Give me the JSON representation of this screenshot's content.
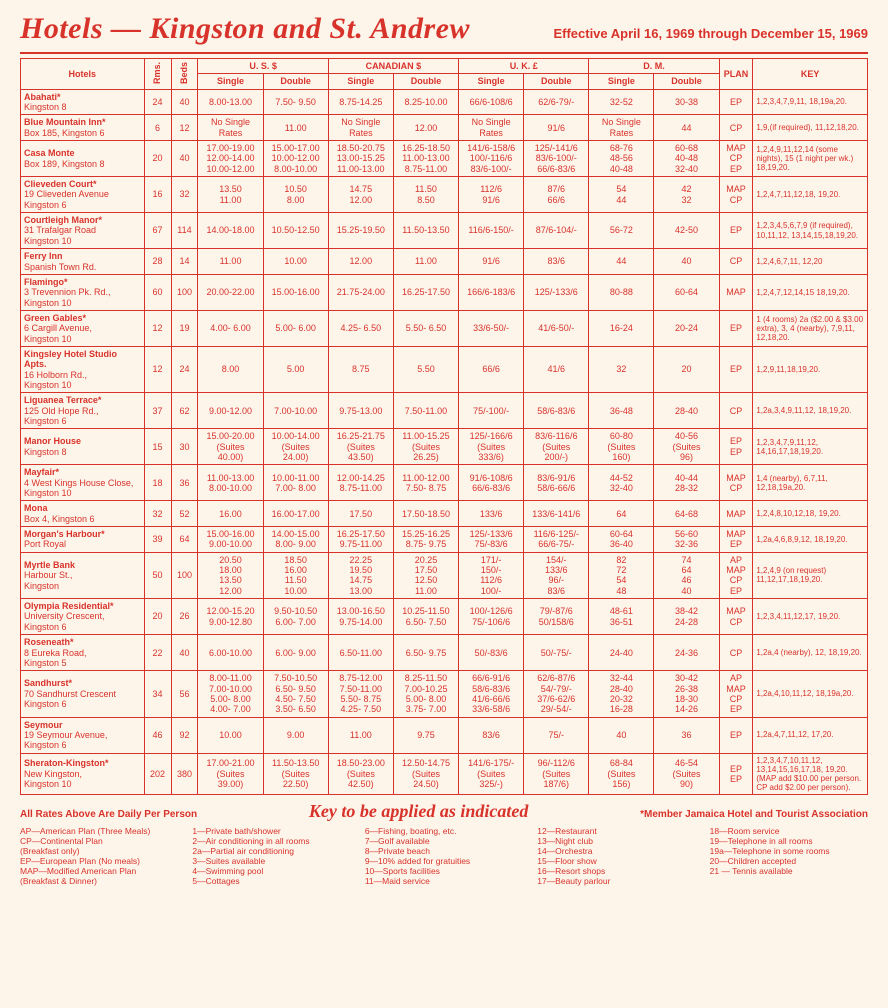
{
  "header": {
    "title": "Hotels — Kingston and St. Andrew",
    "effective": "Effective April 16, 1969 through December 15, 1969"
  },
  "columns": {
    "hotels": "Hotels",
    "rms": "Rms.",
    "beds": "Beds",
    "us": "U. S. $",
    "can": "CANADIAN $",
    "uk": "U. K. £",
    "dm": "D. M.",
    "single": "Single",
    "double": "Double",
    "plan": "PLAN",
    "key": "KEY"
  },
  "hotels": [
    {
      "name": "Abahati*",
      "addr": "Kingston 8",
      "rms": "24",
      "beds": "40",
      "us_s": "8.00-13.00",
      "us_d": "7.50- 9.50",
      "ca_s": "8.75-14.25",
      "ca_d": "8.25-10.00",
      "uk_s": "66/6-108/6",
      "uk_d": "62/6-79/-",
      "dm_s": "32-52",
      "dm_d": "30-38",
      "plan": "EP",
      "key": "1,2,3,4,7,9,11, 18,19a,20."
    },
    {
      "name": "Blue Mountain Inn*",
      "addr": "Box 185, Kingston 6",
      "rms": "6",
      "beds": "12",
      "us_s": "No Single\nRates",
      "us_d": "11.00",
      "ca_s": "No Single\nRates",
      "ca_d": "12.00",
      "uk_s": "No Single\nRates",
      "uk_d": "91/6",
      "dm_s": "No Single\nRates",
      "dm_d": "44",
      "plan": "CP",
      "key": "1,9,(if required), 11,12,18,20."
    },
    {
      "name": "Casa Monte",
      "addr": "Box 189, Kingston 8",
      "rms": "20",
      "beds": "40",
      "us_s": "17.00-19.00\n12.00-14.00\n10.00-12.00",
      "us_d": "15.00-17.00\n10.00-12.00\n8.00-10.00",
      "ca_s": "18.50-20.75\n13.00-15.25\n11.00-13.00",
      "ca_d": "16.25-18.50\n11.00-13.00\n8.75-11.00",
      "uk_s": "141/6-158/6\n100/-116/6\n83/6-100/-",
      "uk_d": "125/-141/6\n83/6-100/-\n66/6-83/6",
      "dm_s": "68-76\n48-56\n40-48",
      "dm_d": "60-68\n40-48\n32-40",
      "plan": "MAP\nCP\nEP",
      "key": "1,2,4,9,11,12,14 (some nights), 15 (1 night per wk.) 18,19,20."
    },
    {
      "name": "Clieveden Court*",
      "addr": "19 Clieveden Avenue\nKingston 6",
      "rms": "16",
      "beds": "32",
      "us_s": "13.50\n11.00",
      "us_d": "10.50\n8.00",
      "ca_s": "14.75\n12.00",
      "ca_d": "11.50\n8.50",
      "uk_s": "112/6\n91/6",
      "uk_d": "87/6\n66/6",
      "dm_s": "54\n44",
      "dm_d": "42\n32",
      "plan": "MAP\nCP",
      "key": "1,2,4,7,11,12,18, 19,20."
    },
    {
      "name": "Courtleigh Manor*",
      "addr": "31 Trafalgar Road\nKingston 10",
      "rms": "67",
      "beds": "114",
      "us_s": "14.00-18.00",
      "us_d": "10.50-12.50",
      "ca_s": "15.25-19.50",
      "ca_d": "11.50-13.50",
      "uk_s": "116/6-150/-",
      "uk_d": "87/6-104/-",
      "dm_s": "56-72",
      "dm_d": "42-50",
      "plan": "EP",
      "key": "1,2,3,4,5,6,7,9 (if required), 10,11,12, 13,14,15,18,19,20."
    },
    {
      "name": "Ferry Inn",
      "addr": "Spanish Town Rd.",
      "rms": "28",
      "beds": "14",
      "us_s": "11.00",
      "us_d": "10.00",
      "ca_s": "12.00",
      "ca_d": "11.00",
      "uk_s": "91/6",
      "uk_d": "83/6",
      "dm_s": "44",
      "dm_d": "40",
      "plan": "CP",
      "key": "1,2,4,6,7,11, 12,20"
    },
    {
      "name": "Flamingo*",
      "addr": "3 Trevennion Pk. Rd.,\nKingston 10",
      "rms": "60",
      "beds": "100",
      "us_s": "20.00-22.00",
      "us_d": "15.00-16.00",
      "ca_s": "21.75-24.00",
      "ca_d": "16.25-17.50",
      "uk_s": "166/6-183/6",
      "uk_d": "125/-133/6",
      "dm_s": "80-88",
      "dm_d": "60-64",
      "plan": "MAP",
      "key": "1,2,4,7,12,14,15 18,19,20."
    },
    {
      "name": "Green Gables*",
      "addr": "6 Cargill Avenue,\nKingston 10",
      "rms": "12",
      "beds": "19",
      "us_s": "4.00- 6.00",
      "us_d": "5.00- 6.00",
      "ca_s": "4.25- 6.50",
      "ca_d": "5.50- 6.50",
      "uk_s": "33/6-50/-",
      "uk_d": "41/6-50/-",
      "dm_s": "16-24",
      "dm_d": "20-24",
      "plan": "EP",
      "key": "1 (4 rooms) 2a ($2.00 & $3.00 extra), 3, 4 (nearby), 7,9,11, 12,18,20."
    },
    {
      "name": "Kingsley Hotel Studio Apts.",
      "addr": "16 Holborn Rd.,\nKingston 10",
      "rms": "12",
      "beds": "24",
      "us_s": "8.00",
      "us_d": "5.00",
      "ca_s": "8.75",
      "ca_d": "5.50",
      "uk_s": "66/6",
      "uk_d": "41/6",
      "dm_s": "32",
      "dm_d": "20",
      "plan": "EP",
      "key": "1,2,9,11,18,19,20."
    },
    {
      "name": "Liguanea Terrace*",
      "addr": "125 Old Hope Rd.,\nKingston 6",
      "rms": "37",
      "beds": "62",
      "us_s": "9.00-12.00",
      "us_d": "7.00-10.00",
      "ca_s": "9.75-13.00",
      "ca_d": "7.50-11.00",
      "uk_s": "75/-100/-",
      "uk_d": "58/6-83/6",
      "dm_s": "36-48",
      "dm_d": "28-40",
      "plan": "CP",
      "key": "1,2a,3,4,9,11,12, 18,19,20."
    },
    {
      "name": "Manor House",
      "addr": "Kingston 8",
      "rms": "15",
      "beds": "30",
      "us_s": "15.00-20.00\n(Suites\n40.00)",
      "us_d": "10.00-14.00\n(Suites\n24.00)",
      "ca_s": "16.25-21.75\n(Suites\n43.50)",
      "ca_d": "11.00-15.25\n(Suites\n26.25)",
      "uk_s": "125/-166/6\n(Suites\n333/6)",
      "uk_d": "83/6-116/6\n(Suites\n200/-)",
      "dm_s": "60-80\n(Suites\n160)",
      "dm_d": "40-56\n(Suites\n96)",
      "plan": "EP\nEP",
      "key": "1,2,3,4,7,9,11,12, 14,16,17,18,19,20."
    },
    {
      "name": "Mayfair*",
      "addr": "4 West Kings House Close,\nKingston 10",
      "rms": "18",
      "beds": "36",
      "us_s": "11.00-13.00\n8.00-10.00",
      "us_d": "10.00-11.00\n7.00- 8.00",
      "ca_s": "12.00-14.25\n8.75-11.00",
      "ca_d": "11.00-12.00\n7.50- 8.75",
      "uk_s": "91/6-108/6\n66/6-83/6",
      "uk_d": "83/6-91/6\n58/6-66/6",
      "dm_s": "44-52\n32-40",
      "dm_d": "40-44\n28-32",
      "plan": "MAP\nCP",
      "key": "1,4 (nearby), 6,7,11, 12,18,19a,20."
    },
    {
      "name": "Mona",
      "addr": "Box 4, Kingston 6",
      "rms": "32",
      "beds": "52",
      "us_s": "16.00",
      "us_d": "16.00-17.00",
      "ca_s": "17.50",
      "ca_d": "17.50-18.50",
      "uk_s": "133/6",
      "uk_d": "133/6-141/6",
      "dm_s": "64",
      "dm_d": "64-68",
      "plan": "MAP",
      "key": "1,2,4,8,10,12,18, 19,20."
    },
    {
      "name": "Morgan's Harbour*",
      "addr": "Port Royal",
      "rms": "39",
      "beds": "64",
      "us_s": "15.00-16.00\n9.00-10.00",
      "us_d": "14.00-15.00\n8.00- 9.00",
      "ca_s": "16.25-17.50\n9.75-11.00",
      "ca_d": "15.25-16.25\n8.75- 9.75",
      "uk_s": "125/-133/6\n75/-83/6",
      "uk_d": "116/6-125/-\n66/6-75/-",
      "dm_s": "60-64\n36-40",
      "dm_d": "56-60\n32-36",
      "plan": "MAP\nEP",
      "key": "1,2a,4,6,8,9,12, 18,19,20."
    },
    {
      "name": "Myrtle Bank",
      "addr": "Harbour St.,\nKingston",
      "rms": "50",
      "beds": "100",
      "us_s": "20.50\n18.00\n13.50\n12.00",
      "us_d": "18.50\n16.00\n11.50\n10.00",
      "ca_s": "22.25\n19.50\n14.75\n13.00",
      "ca_d": "20.25\n17.50\n12.50\n11.00",
      "uk_s": "171/-\n150/-\n112/6\n100/-",
      "uk_d": "154/-\n133/6\n96/-\n83/6",
      "dm_s": "82\n72\n54\n48",
      "dm_d": "74\n64\n46\n40",
      "plan": "AP\nMAP\nCP\nEP",
      "key": "1,2,4,9 (on request) 11,12,17,18,19,20."
    },
    {
      "name": "Olympia Residential*",
      "addr": "University Crescent,\nKingston 6",
      "rms": "20",
      "beds": "26",
      "us_s": "12.00-15.20\n9.00-12.80",
      "us_d": "9.50-10.50\n6.00- 7.00",
      "ca_s": "13.00-16.50\n9.75-14.00",
      "ca_d": "10.25-11.50\n6.50- 7.50",
      "uk_s": "100/-126/6\n75/-106/6",
      "uk_d": "79/-87/6\n50/158/6",
      "dm_s": "48-61\n36-51",
      "dm_d": "38-42\n24-28",
      "plan": "MAP\nCP",
      "key": "1,2,3,4,11,12,17, 19,20."
    },
    {
      "name": "Roseneath*",
      "addr": "8 Eureka Road,\nKingston 5",
      "rms": "22",
      "beds": "40",
      "us_s": "6.00-10.00",
      "us_d": "6.00- 9.00",
      "ca_s": "6.50-11.00",
      "ca_d": "6.50- 9.75",
      "uk_s": "50/-83/6",
      "uk_d": "50/-75/-",
      "dm_s": "24-40",
      "dm_d": "24-36",
      "plan": "CP",
      "key": "1,2a,4 (nearby), 12, 18,19,20."
    },
    {
      "name": "Sandhurst*",
      "addr": "70 Sandhurst Crescent\nKingston 6",
      "rms": "34",
      "beds": "56",
      "us_s": "8.00-11.00\n7.00-10.00\n5.00- 8.00\n4.00- 7.00",
      "us_d": "7.50-10.50\n6.50- 9.50\n4.50- 7.50\n3.50- 6.50",
      "ca_s": "8.75-12.00\n7.50-11.00\n5.50- 8.75\n4.25- 7.50",
      "ca_d": "8.25-11.50\n7.00-10.25\n5.00- 8.00\n3.75- 7.00",
      "uk_s": "66/6-91/6\n58/6-83/6\n41/6-66/6\n33/6-58/6",
      "uk_d": "62/6-87/6\n54/-79/-\n37/6-62/6\n29/-54/-",
      "dm_s": "32-44\n28-40\n20-32\n16-28",
      "dm_d": "30-42\n26-38\n18-30\n14-26",
      "plan": "AP\nMAP\nCP\nEP",
      "key": "1,2a,4,10,11,12, 18,19a,20."
    },
    {
      "name": "Seymour",
      "addr": "19 Seymour Avenue,\nKingston 6",
      "rms": "46",
      "beds": "92",
      "us_s": "10.00",
      "us_d": "9.00",
      "ca_s": "11.00",
      "ca_d": "9.75",
      "uk_s": "83/6",
      "uk_d": "75/-",
      "dm_s": "40",
      "dm_d": "36",
      "plan": "EP",
      "key": "1,2a,4,7,11,12, 17,20."
    },
    {
      "name": "Sheraton-Kingston*",
      "addr": "New Kingston,\nKingston 10",
      "rms": "202",
      "beds": "380",
      "us_s": "17.00-21.00\n(Suites\n39.00)",
      "us_d": "11.50-13.50\n(Suites\n22.50)",
      "ca_s": "18.50-23.00\n(Suites\n42.50)",
      "ca_d": "12.50-14.75\n(Suites\n24.50)",
      "uk_s": "141/6-175/-\n(Suites\n325/-)",
      "uk_d": "96/-112/6\n(Suites\n187/6)",
      "dm_s": "68-84\n(Suites\n156)",
      "dm_d": "46-54\n(Suites\n90)",
      "plan": "EP\nEP",
      "key": "1,2,3,4,7,10,11,12, 13,14,15,16,17,18, 19,20. (MAP add $10.00 per person. CP add $2.00 per person)."
    }
  ],
  "footer": {
    "rates_note": "All Rates Above Are Daily Per Person",
    "key_title": "Key to be applied as indicated",
    "member_note": "*Member Jamaica Hotel and Tourist Association",
    "plan_legend": [
      "AP—American Plan (Three Meals)",
      "CP—Continental Plan\n        (Breakfast only)",
      "EP—European Plan (No meals)",
      "MAP—Modified American Plan\n        (Breakfast & Dinner)"
    ],
    "key_legend": [
      [
        "1—Private bath/shower",
        "2—Air conditioning in all rooms",
        "2a—Partial air conditioning",
        "3—Suites available",
        "4—Swimming pool",
        "5—Cottages"
      ],
      [
        "6—Fishing, boating, etc.",
        "7—Golf available",
        "8—Private beach",
        "9—10% added for gratuities",
        "10—Sports facilities",
        "11—Maid service"
      ],
      [
        "12—Restaurant",
        "13—Night club",
        "14—Orchestra",
        "15—Floor show",
        "16—Resort shops",
        "17—Beauty parlour"
      ],
      [
        "18—Room service",
        "19—Telephone in all rooms",
        "19a—Telephone in some rooms",
        "20—Children accepted",
        "21 — Tennis available"
      ]
    ]
  }
}
